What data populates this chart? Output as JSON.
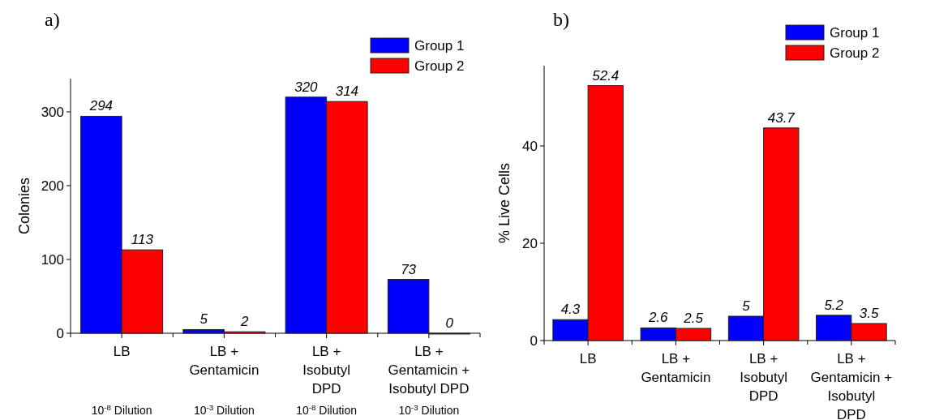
{
  "chart_data": [
    {
      "type": "bar",
      "title": "a)",
      "ylabel": "Colonies",
      "categories": [
        "LB",
        "LB +\nGentamicin",
        "LB +\nIsobutyl\nDPD",
        "LB +\nGentamicin +\nIsobutyl DPD"
      ],
      "series": [
        {
          "name": "Group 1",
          "color": "#0000ff",
          "values": [
            294,
            5,
            320,
            73
          ]
        },
        {
          "name": "Group 2",
          "color": "#ff0000",
          "values": [
            113,
            2,
            314,
            0
          ]
        }
      ],
      "ylim": [
        0,
        345
      ],
      "yticks": [
        0,
        100,
        200,
        300
      ],
      "data_labels": true,
      "legend": "top right",
      "annotations": [
        "10$^{-8}$ Dilution",
        "10$^{-3}$ Dilution",
        "10$^{-8}$ Dilution",
        "10$^{-3}$ Dilution"
      ]
    },
    {
      "type": "bar",
      "title": "b)",
      "ylabel": "% Live Cells",
      "categories": [
        "LB",
        "LB +\nGentamicin",
        "LB +\nIsobutyl\nDPD",
        "LB +\nGentamicin +\nIsobutyl\nDPD"
      ],
      "series": [
        {
          "name": "Group 1",
          "color": "#0000ff",
          "values": [
            4.3,
            2.6,
            5,
            5.2
          ]
        },
        {
          "name": "Group 2",
          "color": "#ff0000",
          "values": [
            52.4,
            2.5,
            43.7,
            3.5
          ]
        }
      ],
      "ylim": [
        0,
        56.5
      ],
      "yticks": [
        0,
        20,
        40
      ],
      "data_labels": true,
      "legend": "top right"
    }
  ]
}
